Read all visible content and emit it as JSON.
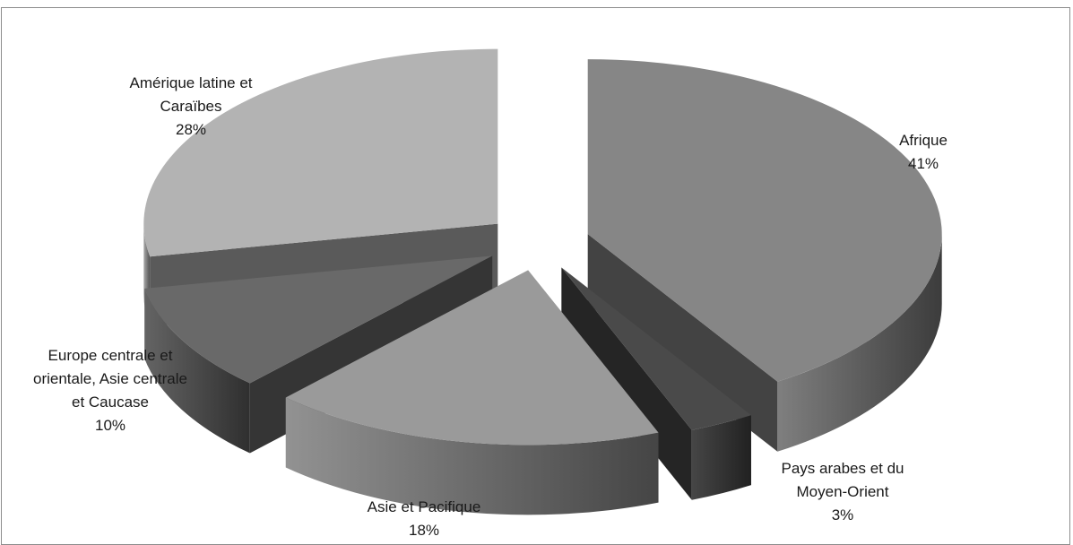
{
  "chart_data": {
    "type": "pie",
    "style": "3d-exploded",
    "legend": "none",
    "slices": [
      {
        "label_lines": [
          "Afrique"
        ],
        "value": 41,
        "pct": "41%",
        "color": "#868686"
      },
      {
        "label_lines": [
          "Pays arabes et du",
          "Moyen-Orient"
        ],
        "value": 3,
        "pct": "3%",
        "color": "#4a4a4a"
      },
      {
        "label_lines": [
          "Asie et Pacifique"
        ],
        "value": 18,
        "pct": "18%",
        "color": "#9a9a9a"
      },
      {
        "label_lines": [
          "Europe centrale et",
          "orientale, Asie centrale",
          "et Caucase"
        ],
        "value": 10,
        "pct": "10%",
        "color": "#696969"
      },
      {
        "label_lines": [
          "Amérique latine et",
          "Caraïbes"
        ],
        "value": 28,
        "pct": "28%",
        "color": "#b3b3b3"
      }
    ]
  }
}
